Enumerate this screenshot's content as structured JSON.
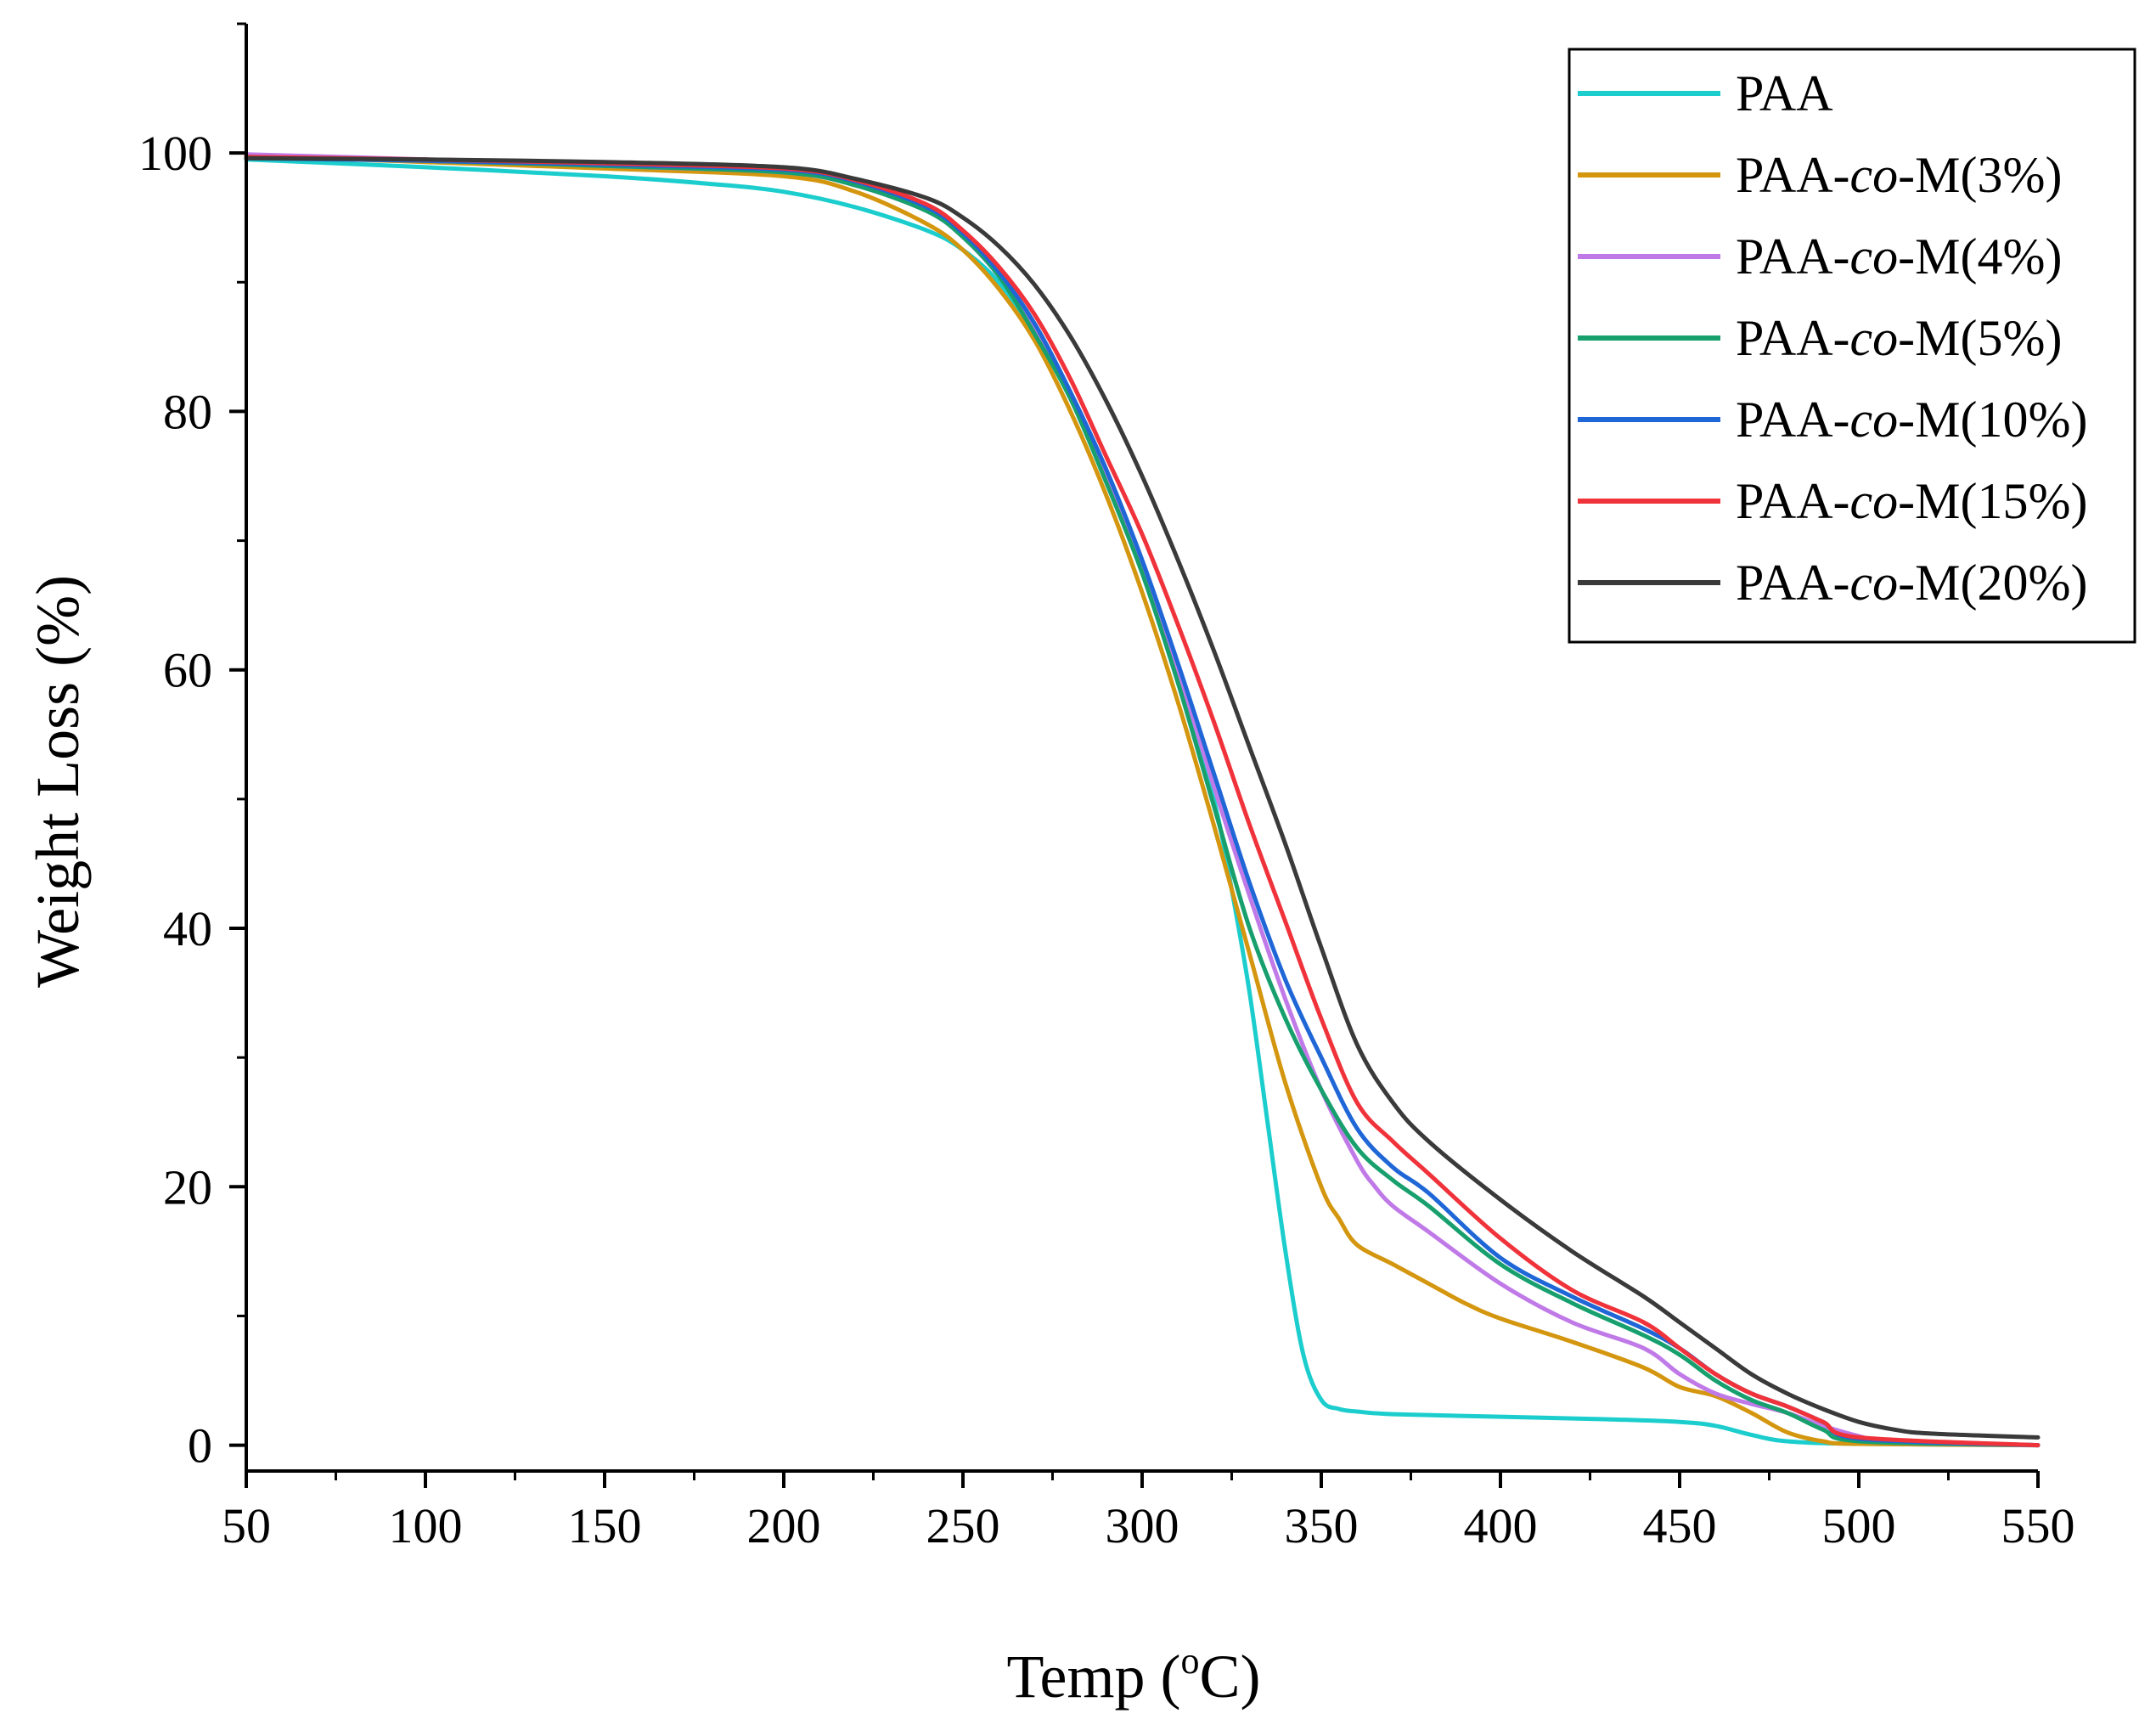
{
  "chart_data": {
    "type": "line",
    "title": "",
    "xlabel": "Temp (oC)",
    "xlabel_parts": {
      "pre": "Temp (",
      "sup": "o",
      "post": "C)"
    },
    "ylabel": "Weight Loss (%)",
    "xlim": [
      50,
      550
    ],
    "ylim": [
      -2,
      110
    ],
    "xticks": [
      50,
      100,
      150,
      200,
      250,
      300,
      350,
      400,
      450,
      500,
      550
    ],
    "yticks": [
      0,
      20,
      40,
      60,
      80,
      100
    ],
    "grid": false,
    "legend_position": "top-right",
    "series": [
      {
        "name": "PAA",
        "name_pre": "PAA",
        "name_italic": "",
        "name_post": "",
        "color": "#1ccdcd",
        "x": [
          50,
          100,
          150,
          180,
          200,
          220,
          240,
          250,
          260,
          270,
          280,
          290,
          300,
          310,
          320,
          325,
          330,
          335,
          340,
          345,
          350,
          355,
          360,
          370,
          400,
          430,
          450,
          460,
          470,
          480,
          500,
          550
        ],
        "y": [
          99.5,
          98.9,
          98.2,
          97.6,
          97.0,
          95.8,
          94.0,
          92.5,
          90.0,
          86.0,
          81.0,
          75.0,
          68.0,
          60.0,
          50.0,
          43.0,
          35.0,
          25.0,
          15.0,
          7.0,
          3.5,
          2.8,
          2.6,
          2.4,
          2.2,
          2.0,
          1.8,
          1.5,
          0.8,
          0.3,
          0.1,
          0.0
        ]
      },
      {
        "name": "PAA-co-M(3%)",
        "name_pre": "PAA-",
        "name_italic": "co",
        "name_post": "-M(3%)",
        "color": "#d4960f",
        "x": [
          50,
          100,
          150,
          200,
          220,
          240,
          250,
          260,
          270,
          280,
          290,
          300,
          310,
          320,
          330,
          340,
          350,
          355,
          360,
          370,
          380,
          390,
          400,
          420,
          440,
          450,
          460,
          470,
          480,
          490,
          500,
          550
        ],
        "y": [
          99.8,
          99.3,
          98.8,
          98.2,
          97.0,
          94.5,
          92.5,
          89.5,
          85.5,
          80.0,
          73.5,
          66.0,
          57.5,
          48.0,
          38.0,
          28.0,
          20.0,
          17.5,
          15.5,
          14.0,
          12.5,
          11.0,
          9.8,
          8.0,
          6.0,
          4.5,
          3.8,
          2.5,
          1.0,
          0.3,
          0.1,
          0.0
        ]
      },
      {
        "name": "PAA-co-M(4%)",
        "name_pre": "PAA-",
        "name_italic": "co",
        "name_post": "-M(4%)",
        "color": "#c07ae8",
        "x": [
          50,
          100,
          150,
          200,
          220,
          240,
          250,
          260,
          270,
          280,
          290,
          300,
          310,
          320,
          330,
          340,
          350,
          360,
          365,
          370,
          380,
          400,
          420,
          440,
          450,
          460,
          470,
          480,
          490,
          500,
          510,
          550
        ],
        "y": [
          99.9,
          99.5,
          99.0,
          98.5,
          97.5,
          95.5,
          93.5,
          90.5,
          86.5,
          81.0,
          75.0,
          68.0,
          60.0,
          51.0,
          42.5,
          34.5,
          27.5,
          22.0,
          20.0,
          18.5,
          16.5,
          12.5,
          9.5,
          7.5,
          5.5,
          4.0,
          3.2,
          2.5,
          1.5,
          0.7,
          0.2,
          0.0
        ]
      },
      {
        "name": "PAA-co-M(5%)",
        "name_pre": "PAA-",
        "name_italic": "co",
        "name_post": "-M(5%)",
        "color": "#17a06e",
        "x": [
          50,
          100,
          150,
          200,
          220,
          240,
          250,
          260,
          270,
          280,
          290,
          300,
          310,
          320,
          330,
          340,
          350,
          360,
          370,
          380,
          400,
          420,
          440,
          450,
          460,
          470,
          480,
          490,
          500,
          550
        ],
        "y": [
          99.7,
          99.4,
          99.0,
          98.5,
          97.5,
          95.5,
          93.5,
          90.5,
          86.0,
          81.0,
          74.5,
          67.5,
          59.0,
          49.5,
          40.0,
          33.0,
          27.5,
          23.0,
          20.5,
          18.5,
          14.0,
          11.0,
          8.5,
          7.0,
          5.0,
          3.5,
          2.5,
          1.2,
          0.3,
          0.0
        ]
      },
      {
        "name": "PAA-co-M(10%)",
        "name_pre": "PAA-",
        "name_italic": "co",
        "name_post": "-M(10%)",
        "color": "#1f66d6",
        "x": [
          50,
          100,
          150,
          200,
          220,
          240,
          250,
          260,
          270,
          280,
          290,
          300,
          310,
          320,
          330,
          340,
          350,
          360,
          370,
          380,
          400,
          420,
          440,
          450,
          460,
          470,
          480,
          490,
          500,
          550
        ],
        "y": [
          99.6,
          99.4,
          99.1,
          98.7,
          97.8,
          95.8,
          93.8,
          90.8,
          86.8,
          81.5,
          75.5,
          68.5,
          60.5,
          52.0,
          43.5,
          36.0,
          30.0,
          24.5,
          21.5,
          19.5,
          14.5,
          11.5,
          9.0,
          7.5,
          5.5,
          4.0,
          3.0,
          1.8,
          0.5,
          0.0
        ]
      },
      {
        "name": "PAA-co-M(15%)",
        "name_pre": "PAA-",
        "name_italic": "co",
        "name_post": "-M(15%)",
        "color": "#f0323a",
        "x": [
          50,
          100,
          150,
          200,
          220,
          240,
          250,
          260,
          270,
          280,
          290,
          300,
          310,
          320,
          330,
          340,
          350,
          360,
          370,
          380,
          400,
          420,
          440,
          450,
          460,
          470,
          480,
          490,
          500,
          550
        ],
        "y": [
          99.7,
          99.5,
          99.2,
          98.8,
          97.9,
          96.0,
          94.0,
          91.2,
          87.5,
          82.5,
          76.5,
          70.5,
          63.5,
          56.0,
          48.0,
          40.5,
          33.0,
          26.5,
          23.5,
          21.0,
          16.0,
          12.0,
          9.5,
          7.5,
          5.5,
          4.0,
          3.0,
          1.8,
          0.6,
          0.0
        ]
      },
      {
        "name": "PAA-co-M(20%)",
        "name_pre": "PAA-",
        "name_italic": "co",
        "name_post": "-M(20%)",
        "color": "#3a3a3a",
        "x": [
          50,
          100,
          150,
          200,
          220,
          240,
          250,
          260,
          270,
          280,
          290,
          300,
          310,
          320,
          330,
          340,
          350,
          360,
          370,
          380,
          400,
          420,
          440,
          450,
          460,
          470,
          480,
          490,
          500,
          510,
          520,
          550
        ],
        "y": [
          99.6,
          99.5,
          99.3,
          98.9,
          98.0,
          96.5,
          95.0,
          92.8,
          89.8,
          85.8,
          80.8,
          75.0,
          68.5,
          61.5,
          54.0,
          46.5,
          38.5,
          31.0,
          26.5,
          23.5,
          19.0,
          15.0,
          11.5,
          9.5,
          7.5,
          5.5,
          4.0,
          2.8,
          1.8,
          1.2,
          0.9,
          0.6
        ]
      }
    ]
  }
}
